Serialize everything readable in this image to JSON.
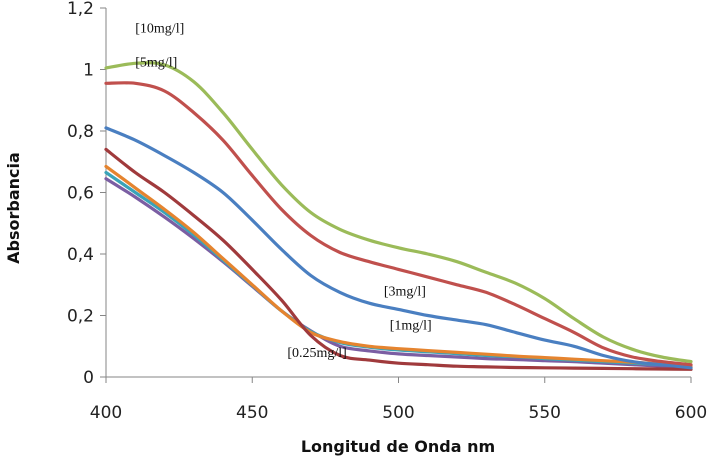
{
  "chart_data": {
    "type": "line",
    "title": "",
    "xlabel": "Longitud de Onda  nm",
    "ylabel": "Absorbancia",
    "xlim": [
      400,
      600
    ],
    "ylim": [
      0,
      1.2
    ],
    "x_ticks": [
      400,
      450,
      500,
      550,
      600
    ],
    "x_tick_labels": [
      "400",
      "450",
      "500",
      "550",
      "600"
    ],
    "y_ticks": [
      0,
      0.2,
      0.4,
      0.6,
      0.8,
      1.0,
      1.2
    ],
    "y_tick_labels": [
      "0",
      "0,2",
      "0,4",
      "0,6",
      "0,8",
      "1",
      "1,2"
    ],
    "grid": false,
    "legend": "none",
    "x": [
      400,
      410,
      420,
      430,
      440,
      450,
      460,
      470,
      480,
      490,
      500,
      510,
      520,
      530,
      540,
      550,
      560,
      570,
      580,
      590,
      600
    ],
    "series": [
      {
        "name": "purple",
        "color": "#7b5ea3",
        "values": [
          0.645,
          0.585,
          0.52,
          0.45,
          0.375,
          0.295,
          0.215,
          0.15,
          0.1,
          0.085,
          0.075,
          0.07,
          0.065,
          0.06,
          0.057,
          0.053,
          0.05,
          0.045,
          0.04,
          0.035,
          0.03
        ]
      },
      {
        "name": "teal",
        "color": "#3aa3b8",
        "values": [
          0.665,
          0.6,
          0.535,
          0.462,
          0.38,
          0.298,
          0.215,
          0.148,
          0.112,
          0.097,
          0.088,
          0.082,
          0.076,
          0.07,
          0.066,
          0.06,
          0.055,
          0.05,
          0.045,
          0.04,
          0.035
        ]
      },
      {
        "name": "orange",
        "color": "#e5842f",
        "values": [
          0.685,
          0.615,
          0.545,
          0.47,
          0.385,
          0.3,
          0.215,
          0.145,
          0.115,
          0.1,
          0.092,
          0.086,
          0.08,
          0.074,
          0.068,
          0.063,
          0.058,
          0.053,
          0.048,
          0.042,
          0.036
        ]
      },
      {
        "name": "[0.25mg/l]",
        "color": "#a03a3c",
        "values": [
          0.74,
          0.665,
          0.6,
          0.525,
          0.445,
          0.35,
          0.25,
          0.135,
          0.07,
          0.055,
          0.045,
          0.04,
          0.035,
          0.033,
          0.031,
          0.03,
          0.029,
          0.028,
          0.027,
          0.026,
          0.025
        ]
      },
      {
        "name": "[1mg/l]",
        "color": "#4a7fc1",
        "values": [
          0.81,
          0.77,
          0.72,
          0.665,
          0.6,
          0.51,
          0.415,
          0.33,
          0.275,
          0.24,
          0.22,
          0.2,
          0.185,
          0.17,
          0.145,
          0.12,
          0.1,
          0.07,
          0.05,
          0.04,
          0.03
        ]
      },
      {
        "name": "[3mg/l]",
        "color": "#c0504d",
        "values": [
          0.955,
          0.955,
          0.93,
          0.86,
          0.77,
          0.655,
          0.545,
          0.46,
          0.405,
          0.375,
          0.35,
          0.325,
          0.3,
          0.275,
          0.235,
          0.19,
          0.145,
          0.095,
          0.065,
          0.05,
          0.04
        ]
      },
      {
        "name": "[10mg/l]",
        "color": "#9bbb59",
        "values": [
          1.005,
          1.02,
          1.015,
          0.96,
          0.86,
          0.74,
          0.625,
          0.535,
          0.48,
          0.445,
          0.42,
          0.4,
          0.375,
          0.34,
          0.305,
          0.255,
          0.19,
          0.13,
          0.09,
          0.065,
          0.05
        ]
      }
    ],
    "annotations": [
      {
        "text": "[10mg/l]",
        "x": 410,
        "y": 1.12
      },
      {
        "text": "[5mg/l]",
        "x": 410,
        "y": 1.01
      },
      {
        "text": "[3mg/l]",
        "x": 495,
        "y": 0.265
      },
      {
        "text": "[1mg/l]",
        "x": 497,
        "y": 0.155
      },
      {
        "text": "[0.25mg/l]",
        "x": 462,
        "y": 0.065
      }
    ]
  }
}
